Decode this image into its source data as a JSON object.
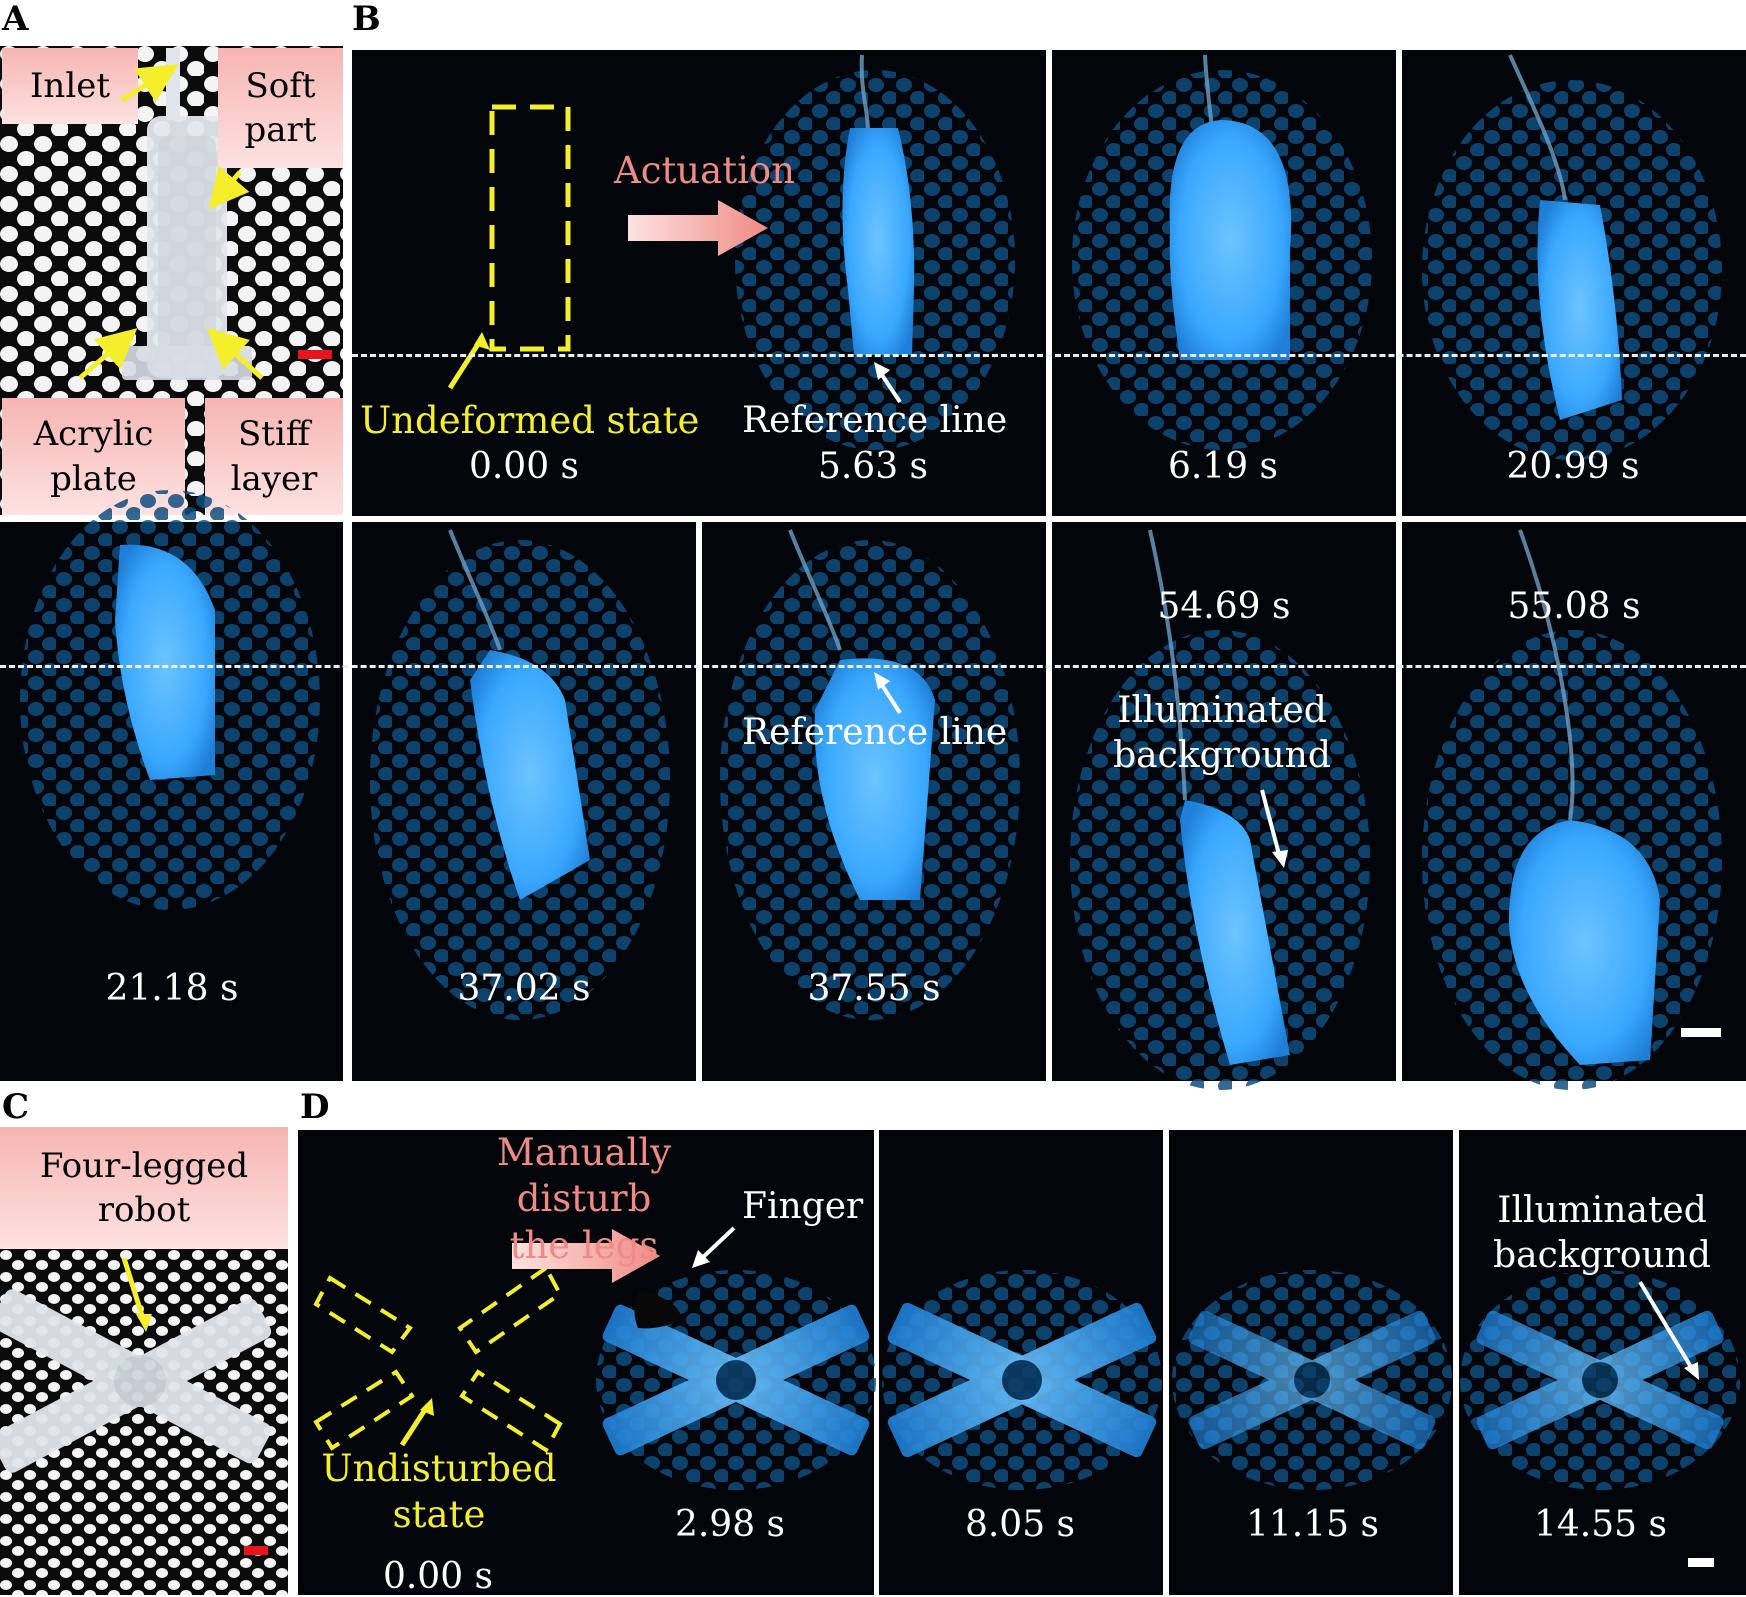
{
  "panels": {
    "a": {
      "letter": "A",
      "labels": {
        "inlet": "Inlet",
        "soft_part": "Soft\npart",
        "acrylic_plate": "Acrylic\nplate",
        "stiff_layer": "Stiff\nlayer"
      }
    },
    "b": {
      "letter": "B",
      "annotations": {
        "actuation": "Actuation",
        "undeformed_state": "Undeformed state",
        "reference_line_1": "Reference line",
        "reference_line_2": "Reference line",
        "illuminated_background": "Illuminated\nbackground"
      },
      "timestamps": [
        "0.00 s",
        "5.63 s",
        "6.19 s",
        "20.99 s",
        "21.18 s",
        "37.02 s",
        "37.55 s",
        "54.69 s",
        "55.08 s"
      ]
    },
    "c": {
      "letter": "C",
      "labels": {
        "robot": "Four-legged\nrobot"
      }
    },
    "d": {
      "letter": "D",
      "annotations": {
        "disturb": "Manually disturb\nthe legs",
        "finger": "Finger",
        "undisturbed": "Undisturbed\nstate",
        "illuminated_background": "Illuminated\nbackground"
      },
      "timestamps": [
        "0.00 s",
        "2.98 s",
        "8.05 s",
        "11.15 s",
        "14.55 s"
      ]
    }
  },
  "colors": {
    "glow": "#3aa8ff",
    "annotation_yellow": "#f4ef2a",
    "annotation_pink": "#f08a84",
    "scale_bar_red": "#e8141b",
    "scale_bar_white": "#ffffff"
  }
}
